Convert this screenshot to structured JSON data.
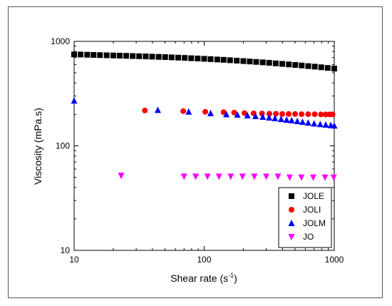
{
  "chart_data": {
    "type": "scatter",
    "title": "",
    "xlabel": "Shear rate (s",
    "xlabel_sup": "-1",
    "xlabel_end": ")",
    "ylabel": "Viscosity (mPa.s)",
    "xscale": "log",
    "yscale": "log",
    "xlim": [
      10,
      1000
    ],
    "ylim": [
      10,
      1000
    ],
    "x_ticks": [
      10,
      100,
      1000
    ],
    "x_tick_labels": [
      "10",
      "100",
      "1000"
    ],
    "y_ticks": [
      10,
      100,
      1000
    ],
    "y_tick_labels": [
      "10",
      "100",
      "1000"
    ],
    "legend_position": "bottom-right",
    "grid": false,
    "series": [
      {
        "name": "JOLE",
        "marker": "square",
        "color": "#000000",
        "points": [
          [
            10,
            750
          ],
          [
            11.2,
            748
          ],
          [
            12.6,
            745
          ],
          [
            14.1,
            742
          ],
          [
            15.8,
            739
          ],
          [
            17.8,
            736
          ],
          [
            20,
            733
          ],
          [
            22.4,
            730
          ],
          [
            25.1,
            727
          ],
          [
            28.2,
            724
          ],
          [
            31.6,
            721
          ],
          [
            35.5,
            718
          ],
          [
            39.8,
            714
          ],
          [
            44.7,
            711
          ],
          [
            50.1,
            707
          ],
          [
            56.2,
            703
          ],
          [
            63.1,
            699
          ],
          [
            70.8,
            695
          ],
          [
            79.4,
            690
          ],
          [
            89.1,
            686
          ],
          [
            100,
            681
          ],
          [
            112,
            676
          ],
          [
            126,
            671
          ],
          [
            141,
            666
          ],
          [
            158,
            660
          ],
          [
            178,
            654
          ],
          [
            200,
            648
          ],
          [
            224,
            642
          ],
          [
            251,
            636
          ],
          [
            282,
            630
          ],
          [
            316,
            623
          ],
          [
            355,
            616
          ],
          [
            398,
            609
          ],
          [
            447,
            602
          ],
          [
            501,
            595
          ],
          [
            562,
            588
          ],
          [
            631,
            580
          ],
          [
            708,
            573
          ],
          [
            794,
            565
          ],
          [
            891,
            557
          ],
          [
            1000,
            549
          ]
        ]
      },
      {
        "name": "JOLI",
        "marker": "circle",
        "color": "#ff0000",
        "points": [
          [
            35,
            218
          ],
          [
            69,
            215
          ],
          [
            102,
            212
          ],
          [
            141,
            210
          ],
          [
            170,
            208
          ],
          [
            204,
            206
          ],
          [
            240,
            205
          ],
          [
            278,
            204
          ],
          [
            317,
            203
          ],
          [
            356,
            203
          ],
          [
            398,
            202
          ],
          [
            446,
            202
          ],
          [
            500,
            202
          ],
          [
            561,
            201
          ],
          [
            630,
            201
          ],
          [
            707,
            201
          ],
          [
            790,
            200
          ],
          [
            860,
            200
          ],
          [
            920,
            200
          ],
          [
            970,
            200
          ]
        ]
      },
      {
        "name": "JOLM",
        "marker": "triangle-up",
        "color": "#0000ff",
        "points": [
          [
            10,
            270
          ],
          [
            44,
            220
          ],
          [
            76,
            212
          ],
          [
            112,
            205
          ],
          [
            148,
            200
          ],
          [
            180,
            198
          ],
          [
            215,
            195
          ],
          [
            248,
            192
          ],
          [
            282,
            189
          ],
          [
            316,
            186
          ],
          [
            350,
            183
          ],
          [
            390,
            180
          ],
          [
            430,
            177
          ],
          [
            470,
            175
          ],
          [
            520,
            172
          ],
          [
            570,
            169
          ],
          [
            630,
            166
          ],
          [
            700,
            163
          ],
          [
            780,
            161
          ],
          [
            860,
            159
          ],
          [
            940,
            157
          ],
          [
            1000,
            156
          ]
        ]
      },
      {
        "name": "JO",
        "marker": "triangle-down",
        "color": "#ff00ff",
        "points": [
          [
            23,
            52
          ],
          [
            70,
            51
          ],
          [
            86,
            51
          ],
          [
            106,
            51
          ],
          [
            130,
            51
          ],
          [
            160,
            51
          ],
          [
            197,
            51
          ],
          [
            243,
            51
          ],
          [
            300,
            51
          ],
          [
            369,
            51
          ],
          [
            454,
            50
          ],
          [
            559,
            50
          ],
          [
            689,
            50
          ],
          [
            849,
            50
          ],
          [
            990,
            50
          ]
        ]
      }
    ]
  }
}
